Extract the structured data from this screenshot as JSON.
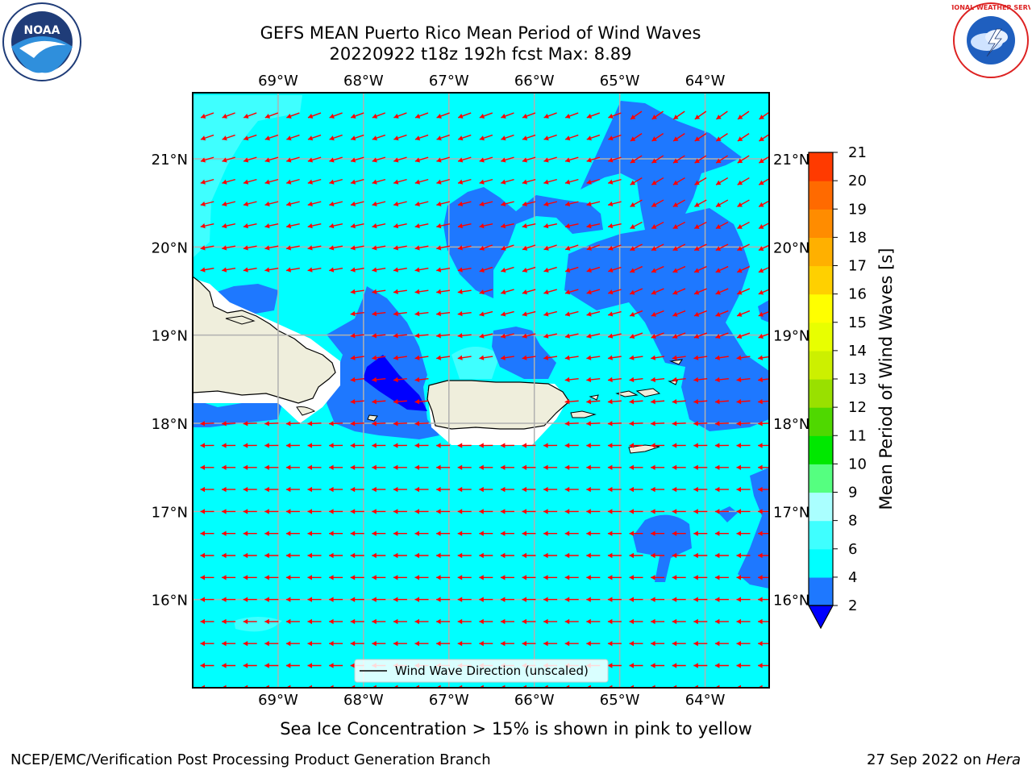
{
  "title": {
    "line1": "GEFS MEAN Puerto Rico Mean Period of Wind Waves",
    "line2": "20220922 t18z 192h fcst   Max: 8.89"
  },
  "logos": {
    "left": {
      "name": "NOAA",
      "ring_text": "NATIONAL OCEANIC AND ATMOSPHERIC ADMINISTRATION · U.S. DEPARTMENT OF COMMERCE"
    },
    "right": {
      "name": "NATIONAL WEATHER SERVICE"
    }
  },
  "map": {
    "lon_labels": [
      "69°W",
      "68°W",
      "67°W",
      "66°W",
      "65°W",
      "64°W"
    ],
    "lat_labels": [
      "21°N",
      "20°N",
      "19°N",
      "18°N",
      "17°N",
      "16°N"
    ],
    "lon_range": [
      -70.0,
      -63.25
    ],
    "lat_range": [
      15.0,
      21.75
    ],
    "arrow_color": "#ff0000",
    "land_color": "#efeedc",
    "legend_label": "Wind Wave Direction (unscaled)"
  },
  "colorbar": {
    "label": "Mean Period of Wind Waves [s]",
    "ticks": [
      "2",
      "4",
      "6",
      "8",
      "9",
      "10",
      "11",
      "12",
      "13",
      "14",
      "15",
      "16",
      "17",
      "18",
      "19",
      "20",
      "21"
    ],
    "colors": [
      "#1e78ff",
      "#00ffff",
      "#3fffff",
      "#aaffff",
      "#55ff80",
      "#00e800",
      "#4fd800",
      "#99e000",
      "#ccf000",
      "#e8ff00",
      "#ffff00",
      "#ffd000",
      "#ffb000",
      "#ff8c00",
      "#ff6a00",
      "#ff3a00",
      "#ff0000"
    ],
    "extend_color": "#0000ff"
  },
  "notes": {
    "sea_ice": "Sea Ice Concentration > 15% is shown in pink to yellow"
  },
  "footer": {
    "left": "NCEP/EMC/Verification Post Processing Product Generation Branch",
    "right_date": "27 Sep 2022 on ",
    "right_host": "Hera"
  }
}
